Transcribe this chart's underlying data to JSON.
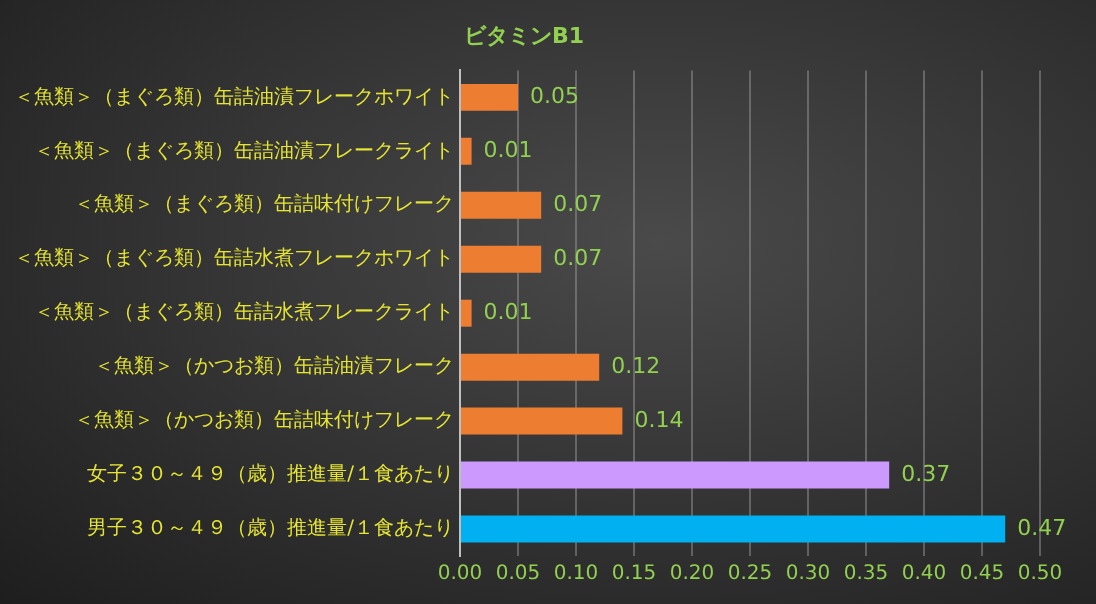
{
  "chart_data": {
    "type": "bar",
    "orientation": "horizontal",
    "title": "ビタミンB1",
    "categories": [
      "＜魚類＞（まぐろ類）缶詰油漬フレークホワイト",
      "＜魚類＞（まぐろ類）缶詰油漬フレークライト",
      "＜魚類＞（まぐろ類）缶詰味付けフレーク",
      "＜魚類＞（まぐろ類）缶詰水煮フレークホワイト",
      "＜魚類＞（まぐろ類）缶詰水煮フレークライト",
      "＜魚類＞（かつお類）缶詰油漬フレーク",
      "＜魚類＞（かつお類）缶詰味付けフレーク",
      "女子３０～４９（歳）推進量/１食あたり",
      "男子３０～４９（歳）推進量/１食あたり"
    ],
    "values": [
      0.05,
      0.01,
      0.07,
      0.07,
      0.01,
      0.12,
      0.14,
      0.37,
      0.47
    ],
    "colors": [
      "#ed7d31",
      "#ed7d31",
      "#ed7d31",
      "#ed7d31",
      "#ed7d31",
      "#ed7d31",
      "#ed7d31",
      "#cc99ff",
      "#00b0f0"
    ],
    "data_labels": true,
    "xlim": [
      0,
      0.5
    ],
    "xticks": [
      {
        "value": 0,
        "label": "0.00"
      },
      {
        "value": 0.05,
        "label": "0.05"
      },
      {
        "value": 0.1,
        "label": "0.10"
      },
      {
        "value": 0.15,
        "label": "0.15"
      },
      {
        "value": 0.2,
        "label": "0.20"
      },
      {
        "value": 0.25,
        "label": "0.25"
      },
      {
        "value": 0.3,
        "label": "0.30"
      },
      {
        "value": 0.35,
        "label": "0.35"
      },
      {
        "value": 0.4,
        "label": "0.40"
      },
      {
        "value": 0.45,
        "label": "0.45"
      },
      {
        "value": 0.5,
        "label": "0.50"
      }
    ],
    "grid": "x",
    "legend": false
  }
}
